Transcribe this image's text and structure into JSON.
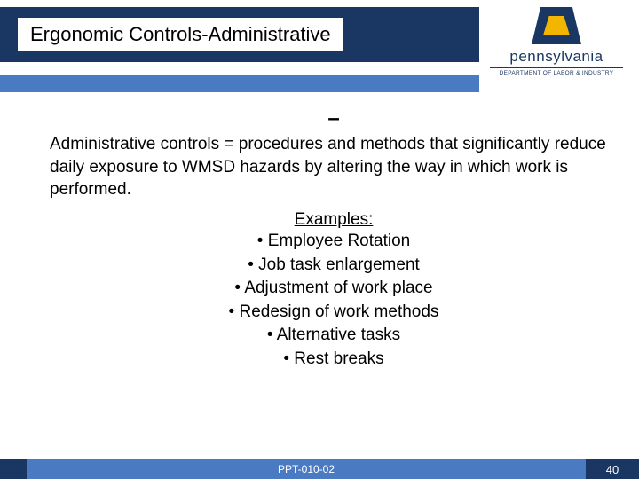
{
  "header": {
    "title": "Ergonomic Controls-Administrative",
    "bar_color": "#1a3763"
  },
  "logo": {
    "wordmark": "pennsylvania",
    "subline": "DEPARTMENT OF LABOR & INDUSTRY",
    "keystone_outer": "#1a3763",
    "keystone_inner": "#f2b600"
  },
  "divider_color": "#4a7bc2",
  "content": {
    "dash": "–",
    "body": "Administrative controls = procedures and methods that significantly reduce daily exposure to WMSD hazards by altering the  way in which work is performed.",
    "examples_heading": "Examples:",
    "bullets": [
      "Employee Rotation",
      "Job task enlargement",
      "Adjustment of work place",
      "Redesign of work methods",
      "Alternative tasks",
      "Rest breaks"
    ]
  },
  "footer": {
    "doc_id": "PPT-010-02",
    "slide_no": "40",
    "bar_color": "#4a7bc2",
    "accent_color": "#1a3763"
  }
}
